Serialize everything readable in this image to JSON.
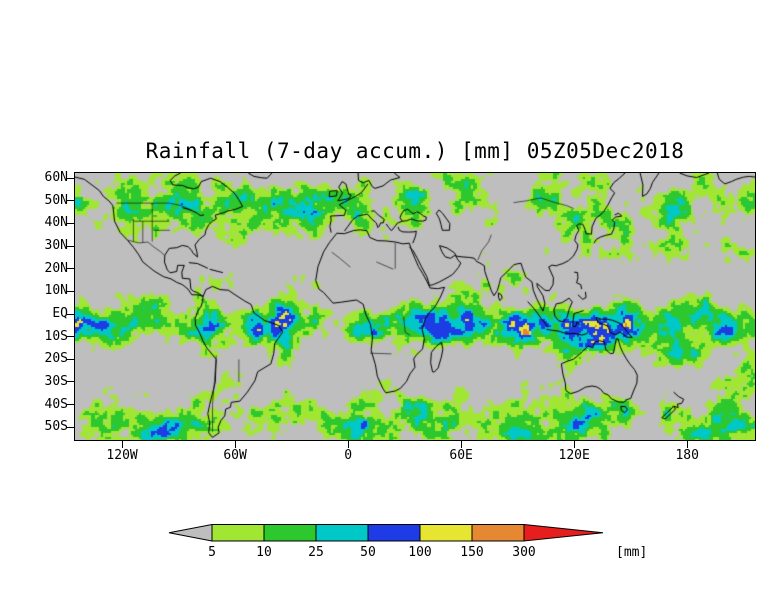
{
  "title": "Rainfall (7-day accum.) [mm] 05Z05Dec2018",
  "map": {
    "lat_ticks": [
      "60N",
      "50N",
      "40N",
      "30N",
      "20N",
      "10N",
      "EQ",
      "10S",
      "20S",
      "30S",
      "40S",
      "50S"
    ],
    "lon_ticks": [
      "120W",
      "60W",
      "0",
      "60E",
      "120E",
      "180"
    ]
  },
  "colorbar": {
    "tick_labels": [
      "5",
      "10",
      "25",
      "50",
      "100",
      "150",
      "300"
    ],
    "unit_label": "[mm]",
    "below_min_color": "#bebebe",
    "above_max_color": "#e61e1e",
    "segment_colors": [
      "#a0e632",
      "#2dc82d",
      "#00c8c8",
      "#1e3ce6",
      "#e6e632",
      "#e68732"
    ]
  },
  "chart_data": {
    "type": "heatmap",
    "title": "Rainfall (7-day accum.) [mm] 05Z05Dec2018",
    "variable": "Rainfall (7-day accumulation)",
    "unit": "mm",
    "valid_time": "05Z05Dec2018",
    "projection": "global latitude-longitude map with coastlines and country borders",
    "lat_axis": {
      "ticks": [
        "60N",
        "50N",
        "40N",
        "30N",
        "20N",
        "10N",
        "EQ",
        "10S",
        "20S",
        "30S",
        "40S",
        "50S"
      ],
      "range": [
        "62N",
        "56S"
      ]
    },
    "lon_axis": {
      "ticks": [
        "120W",
        "60W",
        "0",
        "60E",
        "120E",
        "180"
      ],
      "range": [
        "145W eastward around globe to 144W"
      ]
    },
    "levels_mm": [
      5,
      10,
      25,
      50,
      100,
      150,
      300
    ],
    "level_colors": {
      "<5": "#bebebe",
      "5-10": "#a0e632",
      "10-25": "#2dc82d",
      "25-50": "#00c8c8",
      "50-100": "#1e3ce6",
      "100-150": "#e6e632",
      "150-300": "#e68732",
      ">300": "#e61e1e"
    },
    "legend_position": "bottom",
    "grid": false,
    "notes": "Heavy rain (cyan/blue with yellow-orange cores) along the ITCZ just south of the equator, over the Maritime Continent, the SPCZ, Colombia and southern India; gray (<5 mm) over subtropical eastern oceans, Sahara, Arabia and central Asia; green storm-track bands near 45N and 45S."
  }
}
